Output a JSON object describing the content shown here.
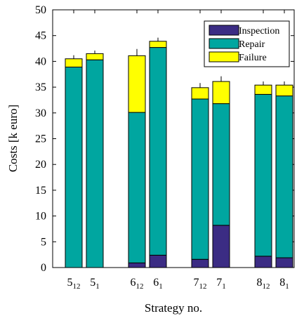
{
  "chart_data": {
    "type": "bar",
    "stacked": true,
    "xlabel": "Strategy no.",
    "ylabel": "Costs [k euro]",
    "ylim": [
      0,
      50
    ],
    "yticks": [
      0,
      5,
      10,
      15,
      20,
      25,
      30,
      35,
      40,
      45,
      50
    ],
    "grid": false,
    "legend_position": "top-right",
    "categories": [
      {
        "main": "5",
        "sub": "12"
      },
      {
        "main": "5",
        "sub": "1"
      },
      {
        "main": "6",
        "sub": "12"
      },
      {
        "main": "6",
        "sub": "1"
      },
      {
        "main": "7",
        "sub": "12"
      },
      {
        "main": "7",
        "sub": "1"
      },
      {
        "main": "8",
        "sub": "12"
      },
      {
        "main": "8",
        "sub": "1"
      }
    ],
    "series": [
      {
        "name": "Inspection",
        "color": "#3b2c84",
        "values": [
          0,
          0,
          0.9,
          2.4,
          1.6,
          8.2,
          2.2,
          1.9
        ]
      },
      {
        "name": "Repair",
        "color": "#00a6a0",
        "values": [
          38.9,
          40.3,
          29.2,
          40.3,
          31.1,
          23.6,
          31.4,
          31.4
        ]
      },
      {
        "name": "Failure",
        "color": "#ffff00",
        "values": [
          1.6,
          1.2,
          11.0,
          1.2,
          2.2,
          4.3,
          1.8,
          2.1
        ]
      }
    ],
    "error_bars": [
      0.7,
      0.6,
      1.3,
      0.7,
      0.9,
      1.0,
      0.7,
      0.7
    ]
  }
}
